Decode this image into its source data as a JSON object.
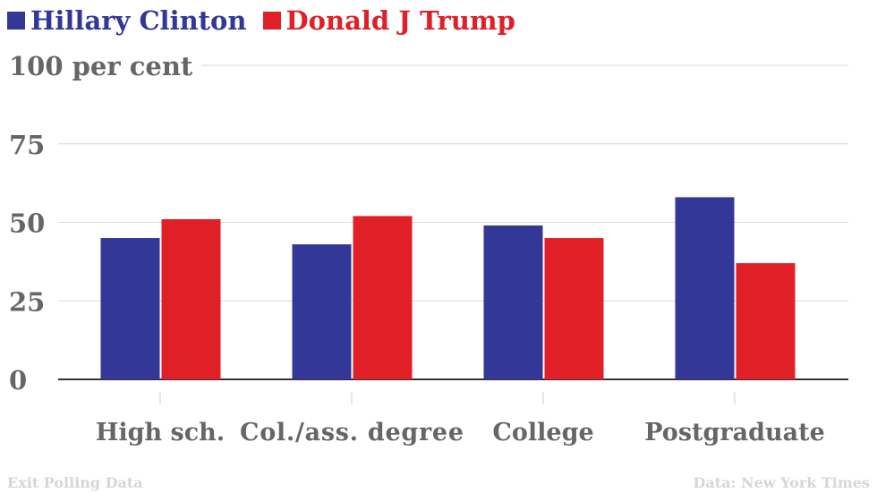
{
  "chart_data": {
    "type": "bar",
    "title": "",
    "categories": [
      "High sch.",
      "Col./ass. degree",
      "College",
      "Postgraduate"
    ],
    "series": [
      {
        "name": "Hillary Clinton",
        "color": "#333797",
        "values": [
          45,
          43,
          49,
          58
        ]
      },
      {
        "name": "Donald J Trump",
        "color": "#e01f26",
        "values": [
          51,
          52,
          45,
          37
        ]
      }
    ],
    "yticks": [
      0,
      25,
      50,
      75,
      100
    ],
    "ytick_labels": [
      "0",
      "25",
      "50",
      "75",
      "100 per cent"
    ],
    "ylim": [
      0,
      100
    ],
    "xlabel": "",
    "ylabel": "",
    "grid": true,
    "legend_position": "top-left"
  },
  "footer": {
    "left": "Exit Polling Data",
    "right": "Data: New York Times"
  }
}
